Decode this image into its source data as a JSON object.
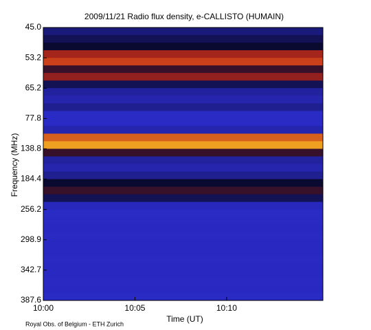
{
  "chart_data": {
    "type": "spectrogram",
    "title": "2009/11/21  Radio flux density, e-CALLISTO (HUMAIN)",
    "x_label": "Time (UT)",
    "y_label": "Frequency (MHz)",
    "footer": "Royal Obs. of Belgium - ETH Zurich",
    "xlim": [
      0,
      15.25
    ],
    "xticks": [
      {
        "value": 0,
        "label": "10:00"
      },
      {
        "value": 5,
        "label": "10:05"
      },
      {
        "value": 10,
        "label": "10:10"
      }
    ],
    "ylim": [
      0,
      9
    ],
    "yticks": [
      {
        "value": 0,
        "label": "45.0"
      },
      {
        "value": 1,
        "label": "53.2"
      },
      {
        "value": 2,
        "label": "65.2"
      },
      {
        "value": 3,
        "label": "77.8"
      },
      {
        "value": 4,
        "label": "138.8"
      },
      {
        "value": 5,
        "label": "184.4"
      },
      {
        "value": 6,
        "label": "256.2"
      },
      {
        "value": 7,
        "label": "298.9"
      },
      {
        "value": 8,
        "label": "342.7"
      },
      {
        "value": 9,
        "label": "387.6"
      }
    ],
    "values": [
      0.45,
      0.5,
      0.55,
      0.72,
      0.78,
      0.6,
      0.7,
      0.5,
      0.4,
      0.38,
      0.42,
      0.35,
      0.35,
      0.38,
      0.82,
      0.9,
      0.6,
      0.4,
      0.38,
      0.42,
      0.55,
      0.6,
      0.5,
      0.36,
      0.35,
      0.34,
      0.33,
      0.34,
      0.33,
      0.33,
      0.34,
      0.33,
      0.33,
      0.34,
      0.33,
      0.35
    ],
    "colorscale": [
      [
        0,
        "#1c1c8c"
      ],
      [
        0.35,
        "#2a2ac4"
      ],
      [
        0.55,
        "#0a0a30"
      ],
      [
        0.75,
        "#c02818"
      ],
      [
        0.9,
        "#f0a020"
      ],
      [
        1,
        "#ffffc0"
      ]
    ]
  }
}
